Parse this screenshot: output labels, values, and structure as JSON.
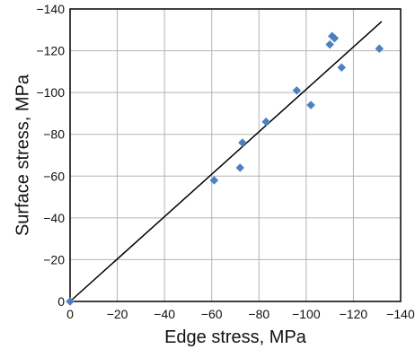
{
  "chart_data": {
    "type": "scatter",
    "title": "",
    "xlabel": "Edge stress, MPa",
    "ylabel": "Surface stress, MPa",
    "xlim": [
      0,
      -140
    ],
    "ylim": [
      0,
      -140
    ],
    "xticks": [
      0,
      -20,
      -40,
      -60,
      -80,
      -100,
      -120,
      -140
    ],
    "yticks": [
      0,
      -20,
      -40,
      -60,
      -80,
      -100,
      -120,
      -140
    ],
    "xtick_labels": [
      "0",
      "−20",
      "−40",
      "−60",
      "−80",
      "−100",
      "−120",
      "−140"
    ],
    "ytick_labels": [
      "0",
      "−20",
      "−40",
      "−60",
      "−80",
      "−100",
      "−120",
      "−140"
    ],
    "grid": true,
    "legend": "none",
    "series": [
      {
        "marker": "diamond",
        "color": "#4f7fc0",
        "points": [
          {
            "x": 0,
            "y": 0
          },
          {
            "x": -61,
            "y": -58
          },
          {
            "x": -72,
            "y": -64
          },
          {
            "x": -73,
            "y": -76
          },
          {
            "x": -83,
            "y": -86
          },
          {
            "x": -96,
            "y": -101
          },
          {
            "x": -102,
            "y": -94
          },
          {
            "x": -110,
            "y": -123
          },
          {
            "x": -111,
            "y": -127
          },
          {
            "x": -112,
            "y": -126
          },
          {
            "x": -115,
            "y": -112
          },
          {
            "x": -131,
            "y": -121
          }
        ]
      }
    ],
    "trend_line": {
      "type": "linear",
      "color": "#000000",
      "from": {
        "x": 0,
        "y": 0
      },
      "to": {
        "x": -132,
        "y": -134
      }
    }
  }
}
